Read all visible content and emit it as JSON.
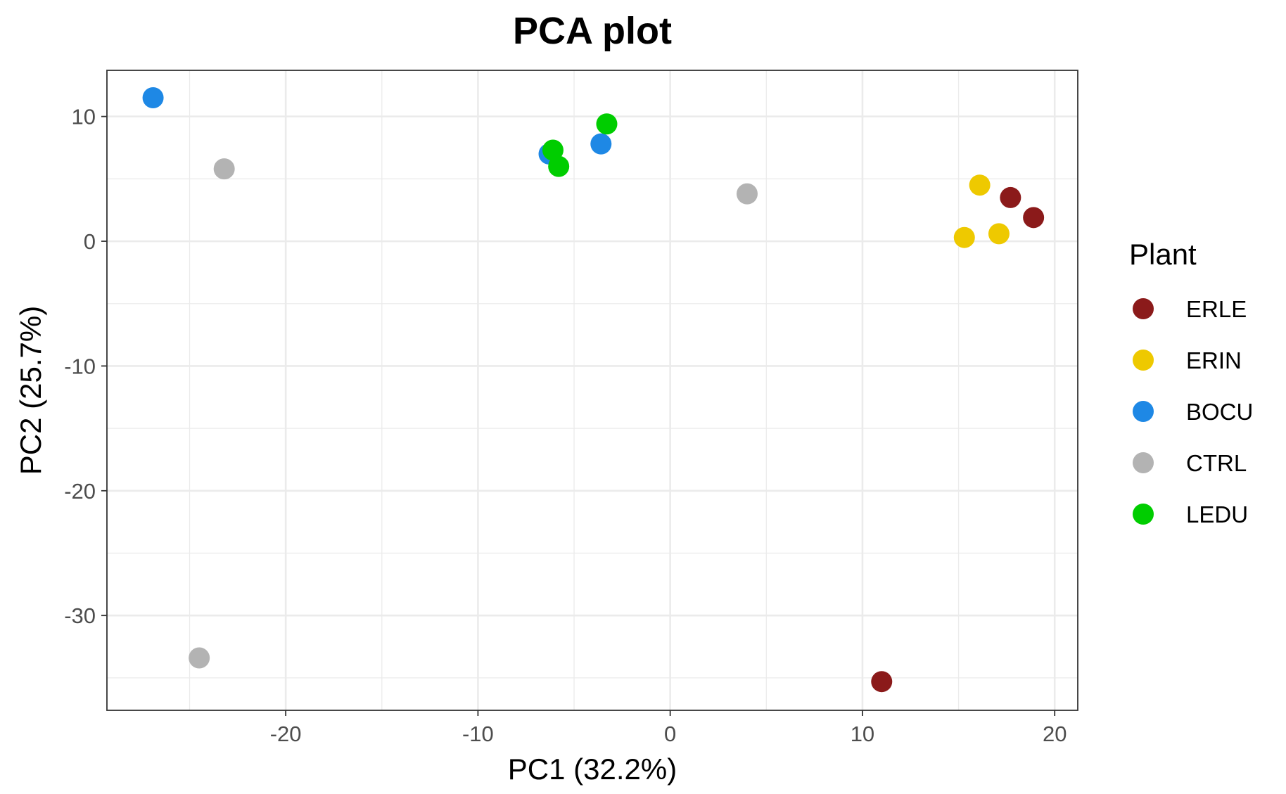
{
  "chart_data": {
    "type": "scatter",
    "title": "PCA plot",
    "xlabel": "PC1 (32.2%)",
    "ylabel": "PC2 (25.7%)",
    "xlim": [
      -29.3,
      21.2
    ],
    "ylim": [
      -37.6,
      13.7
    ],
    "xticks": [
      -20,
      -10,
      0,
      10,
      20
    ],
    "yticks": [
      10,
      0,
      -10,
      -20,
      -30
    ],
    "xtick_labels": [
      "-20",
      "-10",
      "0",
      "10",
      "20"
    ],
    "ytick_labels": [
      "10",
      "0",
      "-10",
      "-20",
      "-30"
    ],
    "grid": true,
    "legend": {
      "title": "Plant",
      "position": "right",
      "entries": [
        "ERLE",
        "ERIN",
        "BOCU",
        "CTRL",
        "LEDU"
      ]
    },
    "series": [
      {
        "name": "ERLE",
        "color": "#8B1A1A",
        "points": [
          {
            "x": 17.7,
            "y": 3.5
          },
          {
            "x": 18.9,
            "y": 1.9
          },
          {
            "x": 11.0,
            "y": -35.3
          }
        ]
      },
      {
        "name": "ERIN",
        "color": "#EEC900",
        "points": [
          {
            "x": 16.1,
            "y": 4.5
          },
          {
            "x": 15.3,
            "y": 0.3
          },
          {
            "x": 17.1,
            "y": 0.6
          }
        ]
      },
      {
        "name": "BOCU",
        "color": "#1E88E5",
        "points": [
          {
            "x": -26.9,
            "y": 11.5
          },
          {
            "x": -6.3,
            "y": 7.0
          },
          {
            "x": -3.6,
            "y": 7.8
          }
        ]
      },
      {
        "name": "CTRL",
        "color": "#B3B3B3",
        "points": [
          {
            "x": -23.2,
            "y": 5.8
          },
          {
            "x": 4.0,
            "y": 3.8
          },
          {
            "x": -24.5,
            "y": -33.4
          }
        ]
      },
      {
        "name": "LEDU",
        "color": "#00CD00",
        "points": [
          {
            "x": -6.1,
            "y": 7.3
          },
          {
            "x": -3.3,
            "y": 9.4
          },
          {
            "x": -5.8,
            "y": 6.0
          }
        ]
      }
    ]
  }
}
